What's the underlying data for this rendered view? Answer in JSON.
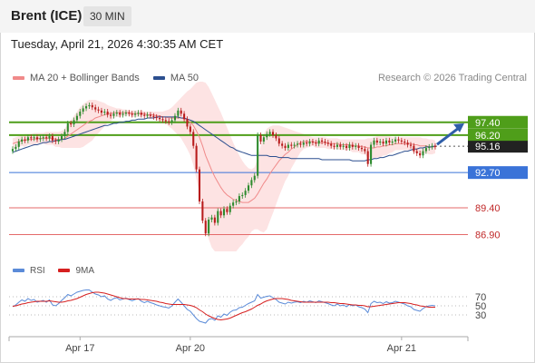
{
  "header": {
    "instrument": "Brent (ICE)",
    "timeframe": "30 MIN"
  },
  "timestamp": "Tuesday, April 21, 2026 4:30:35 AM CET",
  "legend": {
    "items": [
      {
        "label": "MA 20 + Bollinger Bands",
        "color": "#f08a8a"
      },
      {
        "label": "MA 50",
        "color": "#2c4f8f"
      }
    ],
    "copyright": "Research © 2026 Trading Central"
  },
  "rsi_legend": {
    "items": [
      {
        "label": "RSI",
        "color": "#5b8bd8"
      },
      {
        "label": "9MA",
        "color": "#d62020"
      }
    ]
  },
  "colors": {
    "bull": "#2e8b2e",
    "bear": "#b81c1c",
    "resistance": "#4f9e1a",
    "support_blue": "#3a73d8",
    "support_red": "#e46a6a",
    "band_fill": "#fde3e3",
    "arrow": "#2f5ea8"
  },
  "chart_data": [
    {
      "type": "candlestick",
      "title": "Brent (ICE)",
      "timeframe": "30 MIN",
      "x_ticks": [
        "Apr 17",
        "Apr 20",
        "Apr 21"
      ],
      "ylim": [
        85.5,
        99.5
      ],
      "current_price": 95.16,
      "levels": [
        {
          "value": 97.4,
          "label": "97.40",
          "kind": "resistance"
        },
        {
          "value": 96.2,
          "label": "96.20",
          "kind": "resistance"
        },
        {
          "value": 95.16,
          "label": "95.16",
          "kind": "current"
        },
        {
          "value": 92.7,
          "label": "92.70",
          "kind": "pivot"
        },
        {
          "value": 89.4,
          "label": "89.40",
          "kind": "support"
        },
        {
          "value": 86.9,
          "label": "86.90",
          "kind": "support"
        }
      ],
      "close": [
        94.9,
        95.1,
        95.6,
        95.8,
        95.7,
        96.0,
        95.9,
        96.0,
        95.8,
        95.9,
        96.0,
        95.9,
        96.1,
        95.7,
        95.6,
        95.8,
        96.1,
        96.5,
        97.3,
        97.2,
        97.6,
        98.0,
        98.4,
        98.7,
        98.9,
        99.0,
        98.8,
        98.6,
        98.5,
        98.3,
        98.4,
        98.1,
        98.0,
        98.2,
        98.3,
        98.1,
        98.2,
        98.3,
        98.2,
        98.1,
        98.2,
        98.3,
        98.1,
        98.0,
        98.1,
        98.0,
        97.9,
        97.8,
        97.7,
        97.6,
        97.5,
        97.4,
        97.6,
        98.0,
        98.5,
        98.2,
        97.7,
        97.0,
        96.5,
        95.2,
        93.0,
        90.0,
        88.2,
        87.0,
        88.3,
        88.5,
        88.0,
        89.1,
        88.7,
        89.3,
        89.0,
        89.6,
        89.9,
        90.0,
        90.5,
        90.6,
        91.0,
        91.5,
        92.0,
        92.4,
        96.2,
        95.6,
        96.0,
        96.3,
        96.5,
        96.2,
        95.9,
        95.4,
        95.2,
        95.0,
        95.3,
        95.2,
        95.3,
        95.4,
        95.3,
        95.5,
        95.4,
        95.6,
        95.5,
        95.4,
        95.7,
        95.6,
        95.5,
        95.4,
        95.2,
        95.1,
        95.3,
        95.1,
        95.2,
        95.0,
        95.3,
        95.1,
        95.2,
        95.0,
        94.9,
        94.7,
        93.5,
        95.3,
        95.7,
        95.5,
        95.6,
        95.4,
        95.7,
        95.5,
        95.6,
        95.8,
        95.7,
        95.6,
        95.5,
        95.3,
        95.2,
        94.7,
        94.5,
        94.3,
        94.7,
        95.0,
        95.1,
        95.2,
        95.1
      ],
      "ma20": [
        95.4,
        95.5,
        95.6,
        95.7,
        95.7,
        95.8,
        95.8,
        95.8,
        95.9,
        95.9,
        95.9,
        95.9,
        95.9,
        95.9,
        95.8,
        95.8,
        95.8,
        95.9,
        96.1,
        96.3,
        96.5,
        96.7,
        96.9,
        97.1,
        97.3,
        97.5,
        97.6,
        97.8,
        97.9,
        98.0,
        98.1,
        98.2,
        98.2,
        98.3,
        98.3,
        98.3,
        98.3,
        98.3,
        98.3,
        98.2,
        98.2,
        98.2,
        98.2,
        98.2,
        98.1,
        98.1,
        98.1,
        98.0,
        98.0,
        97.9,
        97.9,
        97.8,
        97.8,
        97.8,
        97.8,
        97.8,
        97.7,
        97.6,
        97.4,
        97.1,
        96.6,
        96.0,
        95.2,
        94.3,
        93.6,
        92.9,
        92.3,
        91.8,
        91.3,
        90.9,
        90.6,
        90.4,
        90.2,
        90.1,
        90.0,
        89.9,
        89.9,
        89.9,
        90.1,
        90.3,
        90.7,
        91.2,
        91.7,
        92.1,
        92.6,
        93.0,
        93.4,
        93.8,
        94.1,
        94.4,
        94.6,
        94.9,
        95.1,
        95.3,
        95.5,
        95.6,
        95.6,
        95.6,
        95.6,
        95.5,
        95.5,
        95.5,
        95.5,
        95.4,
        95.4,
        95.4,
        95.4,
        95.3,
        95.3,
        95.3,
        95.3,
        95.2,
        95.2,
        95.2,
        95.1,
        95.1,
        95.0,
        95.0,
        95.0,
        95.1,
        95.1,
        95.2,
        95.2,
        95.3,
        95.3,
        95.4,
        95.4,
        95.4,
        95.4,
        95.4,
        95.4,
        95.3,
        95.3,
        95.2,
        95.2,
        95.2,
        95.1,
        95.1,
        95.1
      ],
      "ma50": [
        94.6,
        94.7,
        94.8,
        94.9,
        95.0,
        95.1,
        95.2,
        95.3,
        95.3,
        95.4,
        95.5,
        95.5,
        95.6,
        95.6,
        95.7,
        95.7,
        95.8,
        95.8,
        95.9,
        96.0,
        96.1,
        96.2,
        96.3,
        96.4,
        96.5,
        96.6,
        96.7,
        96.8,
        96.9,
        97.0,
        97.1,
        97.1,
        97.2,
        97.3,
        97.3,
        97.4,
        97.4,
        97.5,
        97.5,
        97.6,
        97.6,
        97.7,
        97.7,
        97.7,
        97.8,
        97.8,
        97.8,
        97.9,
        97.9,
        97.9,
        97.9,
        97.9,
        97.9,
        97.9,
        97.9,
        97.8,
        97.8,
        97.7,
        97.6,
        97.5,
        97.3,
        97.1,
        96.9,
        96.7,
        96.5,
        96.3,
        96.1,
        95.9,
        95.7,
        95.5,
        95.3,
        95.1,
        95.0,
        94.8,
        94.7,
        94.6,
        94.5,
        94.4,
        94.3,
        94.3,
        94.3,
        94.3,
        94.3,
        94.3,
        94.2,
        94.2,
        94.2,
        94.1,
        94.1,
        94.1,
        94.1,
        94.0,
        94.0,
        94.0,
        94.0,
        94.0,
        94.0,
        94.0,
        94.0,
        94.0,
        94.0,
        93.9,
        93.9,
        93.9,
        93.9,
        93.9,
        93.9,
        93.9,
        93.9,
        93.9,
        93.9,
        93.8,
        93.8,
        93.8,
        93.8,
        93.8,
        93.9,
        93.9,
        94.0,
        94.0,
        94.1,
        94.1,
        94.2,
        94.3,
        94.3,
        94.4,
        94.5,
        94.6,
        94.7,
        94.7,
        94.8,
        94.9,
        94.9,
        95.0,
        95.0,
        95.1,
        95.1,
        95.1,
        95.2
      ],
      "bb_upper": [
        95.9,
        96.0,
        96.1,
        96.2,
        96.3,
        96.3,
        96.3,
        96.4,
        96.4,
        96.4,
        96.4,
        96.5,
        96.5,
        96.5,
        96.5,
        96.5,
        96.6,
        96.8,
        97.2,
        97.6,
        98.0,
        98.4,
        98.8,
        99.1,
        99.3,
        99.5,
        99.5,
        99.5,
        99.4,
        99.3,
        99.2,
        99.0,
        98.9,
        98.8,
        98.7,
        98.7,
        98.6,
        98.6,
        98.5,
        98.5,
        98.5,
        98.5,
        98.5,
        98.4,
        98.4,
        98.4,
        98.4,
        98.4,
        98.4,
        98.4,
        98.5,
        98.6,
        98.8,
        99.1,
        99.4,
        99.7,
        100.0,
        100.3,
        100.5,
        100.8,
        101.1,
        101.2,
        101.2,
        101.1,
        100.7,
        100.1,
        99.5,
        98.9,
        98.3,
        97.6,
        96.9,
        96.2,
        95.5,
        94.9,
        94.3,
        93.8,
        93.4,
        93.1,
        93.0,
        93.2,
        94.0,
        95.2,
        96.3,
        96.8,
        97.0,
        97.1,
        97.1,
        97.1,
        97.0,
        96.9,
        96.8,
        96.7,
        96.6,
        96.5,
        96.4,
        96.3,
        96.2,
        96.1,
        96.0,
        96.0,
        96.0,
        96.0,
        96.0,
        95.9,
        95.9,
        95.9,
        95.9,
        95.8,
        95.8,
        95.8,
        95.8,
        95.8,
        95.8,
        95.8,
        95.8,
        95.8,
        95.9,
        95.9,
        96.0,
        96.1,
        96.1,
        96.1,
        96.1,
        96.1,
        96.0,
        96.0,
        96.0,
        96.0,
        96.0,
        96.0,
        96.0,
        96.0,
        96.0,
        96.0,
        95.9,
        95.9,
        95.8,
        95.8,
        95.7
      ],
      "bb_lower": [
        94.9,
        95.0,
        95.1,
        95.2,
        95.1,
        95.3,
        95.3,
        95.2,
        95.4,
        95.4,
        95.4,
        95.3,
        95.3,
        95.3,
        95.1,
        95.1,
        95.0,
        95.0,
        95.0,
        95.0,
        95.0,
        95.0,
        95.0,
        95.1,
        95.3,
        95.5,
        95.7,
        96.1,
        96.4,
        96.7,
        97.0,
        97.4,
        97.5,
        97.8,
        97.9,
        97.9,
        98.0,
        98.0,
        98.1,
        97.9,
        97.9,
        97.9,
        97.9,
        98.0,
        97.8,
        97.8,
        97.8,
        97.6,
        97.6,
        97.4,
        97.3,
        97.0,
        96.8,
        96.5,
        96.2,
        95.9,
        95.4,
        94.9,
        94.3,
        93.4,
        92.1,
        90.8,
        89.2,
        87.5,
        86.5,
        85.7,
        85.1,
        84.7,
        84.3,
        84.2,
        84.3,
        84.6,
        84.9,
        85.3,
        85.7,
        86.0,
        86.4,
        86.7,
        87.2,
        87.4,
        87.4,
        87.2,
        87.1,
        87.4,
        88.2,
        88.9,
        89.7,
        90.5,
        91.2,
        91.9,
        92.4,
        93.1,
        93.6,
        94.1,
        94.6,
        94.9,
        95.0,
        95.1,
        95.2,
        95.0,
        95.0,
        95.0,
        95.0,
        94.9,
        94.9,
        94.9,
        94.9,
        94.8,
        94.8,
        94.8,
        94.8,
        94.6,
        94.6,
        94.6,
        94.4,
        94.4,
        94.1,
        94.1,
        94.0,
        94.1,
        94.1,
        94.3,
        94.3,
        94.5,
        94.6,
        94.8,
        94.8,
        94.8,
        94.8,
        94.8,
        94.8,
        94.6,
        94.6,
        94.4,
        94.5,
        94.5,
        94.4,
        94.4,
        94.5
      ]
    },
    {
      "type": "line",
      "title": "RSI",
      "ylim": [
        0,
        100
      ],
      "y_ticks": [
        70,
        50,
        30
      ],
      "series": [
        {
          "name": "RSI",
          "values": [
            48,
            52,
            58,
            63,
            60,
            66,
            62,
            64,
            58,
            60,
            62,
            58,
            63,
            52,
            50,
            55,
            62,
            68,
            75,
            72,
            76,
            80,
            82,
            84,
            85,
            85,
            80,
            76,
            74,
            70,
            72,
            65,
            62,
            66,
            68,
            63,
            65,
            67,
            64,
            61,
            64,
            66,
            60,
            57,
            60,
            57,
            55,
            52,
            50,
            48,
            47,
            45,
            50,
            58,
            65,
            58,
            50,
            42,
            38,
            30,
            22,
            16,
            14,
            12,
            20,
            22,
            18,
            28,
            25,
            32,
            29,
            36,
            40,
            41,
            46,
            47,
            51,
            55,
            58,
            61,
            75,
            67,
            69,
            71,
            72,
            68,
            64,
            58,
            56,
            54,
            58,
            56,
            58,
            59,
            57,
            60,
            58,
            61,
            59,
            57,
            61,
            59,
            57,
            55,
            52,
            50,
            54,
            50,
            52,
            48,
            53,
            50,
            52,
            48,
            46,
            43,
            35,
            55,
            60,
            57,
            58,
            55,
            59,
            56,
            57,
            60,
            58,
            56,
            54,
            50,
            48,
            42,
            40,
            38,
            44,
            48,
            50,
            51,
            50
          ]
        },
        {
          "name": "9MA",
          "values": [
            49,
            50,
            52,
            54,
            55,
            57,
            58,
            59,
            60,
            60,
            60,
            60,
            61,
            60,
            59,
            58,
            58,
            59,
            61,
            62,
            64,
            66,
            69,
            72,
            75,
            77,
            79,
            80,
            80,
            79,
            78,
            76,
            74,
            72,
            70,
            68,
            66,
            66,
            65,
            65,
            65,
            65,
            64,
            64,
            63,
            62,
            61,
            60,
            58,
            57,
            55,
            54,
            53,
            53,
            53,
            53,
            53,
            52,
            51,
            49,
            46,
            41,
            37,
            32,
            28,
            25,
            22,
            20,
            19,
            20,
            21,
            23,
            26,
            29,
            32,
            35,
            37,
            40,
            43,
            47,
            51,
            54,
            58,
            61,
            63,
            65,
            66,
            66,
            66,
            65,
            64,
            62,
            61,
            60,
            59,
            58,
            58,
            58,
            58,
            58,
            58,
            58,
            58,
            58,
            57,
            57,
            56,
            55,
            55,
            54,
            53,
            52,
            52,
            51,
            51,
            50,
            48,
            48,
            49,
            50,
            51,
            52,
            53,
            54,
            55,
            56,
            57,
            57,
            57,
            56,
            55,
            53,
            52,
            50,
            49,
            48,
            47,
            47,
            47
          ]
        }
      ]
    }
  ]
}
